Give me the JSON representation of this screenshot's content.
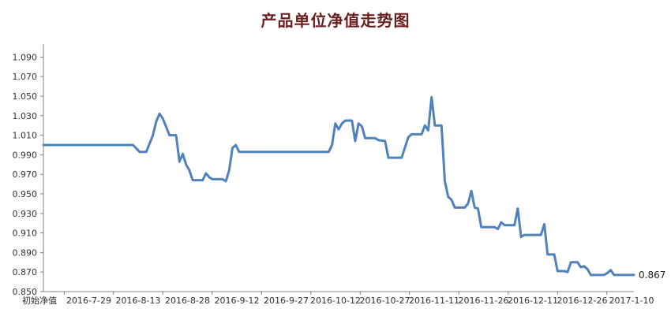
{
  "chart_data": {
    "type": "line",
    "title": "产品单位净值走势图",
    "xlabel": "",
    "ylabel": "",
    "ylim": [
      0.85,
      1.1
    ],
    "yticks": [
      0.85,
      0.87,
      0.89,
      0.91,
      0.93,
      0.95,
      0.97,
      0.99,
      1.01,
      1.03,
      1.05,
      1.07,
      1.09
    ],
    "ytick_labels": [
      "0.850",
      "0.870",
      "0.890",
      "0.910",
      "0.930",
      "0.950",
      "0.970",
      "0.990",
      "1.010",
      "1.030",
      "1.050",
      "1.070",
      "1.090"
    ],
    "x_tick_labels": [
      "初始净值",
      "2016-7-29",
      "2016-8-13",
      "2016-8-28",
      "2016-9-12",
      "2016-9-27",
      "2016-10-12",
      "2016-10-27",
      "2016-11-11",
      "2016-11-26",
      "2016-12-11",
      "2016-12-26",
      "2017-1-10"
    ],
    "x_range_days": [
      0,
      178
    ],
    "grid": false,
    "line_color": "#4f81bd",
    "last_value_label": "0.867",
    "series": [
      {
        "name": "",
        "points": [
          [
            0,
            1.0
          ],
          [
            27,
            1.0
          ],
          [
            29,
            0.993
          ],
          [
            31,
            0.993
          ],
          [
            33,
            1.01
          ],
          [
            34,
            1.024
          ],
          [
            35,
            1.032
          ],
          [
            36,
            1.027
          ],
          [
            38,
            1.01
          ],
          [
            40,
            1.01
          ],
          [
            41,
            0.983
          ],
          [
            42,
            0.991
          ],
          [
            43,
            0.98
          ],
          [
            44,
            0.974
          ],
          [
            45,
            0.964
          ],
          [
            48,
            0.964
          ],
          [
            49,
            0.971
          ],
          [
            50,
            0.967
          ],
          [
            51,
            0.965
          ],
          [
            54,
            0.965
          ],
          [
            55,
            0.963
          ],
          [
            56,
            0.974
          ],
          [
            57,
            0.997
          ],
          [
            58,
            1.0
          ],
          [
            59,
            0.993
          ],
          [
            86,
            0.993
          ],
          [
            87,
            1.0
          ],
          [
            88,
            1.022
          ],
          [
            89,
            1.016
          ],
          [
            90,
            1.022
          ],
          [
            91,
            1.025
          ],
          [
            93,
            1.025
          ],
          [
            94,
            1.004
          ],
          [
            95,
            1.022
          ],
          [
            96,
            1.019
          ],
          [
            97,
            1.007
          ],
          [
            100,
            1.007
          ],
          [
            101,
            1.005
          ],
          [
            103,
            1.004
          ],
          [
            104,
            0.987
          ],
          [
            108,
            0.987
          ],
          [
            110,
            1.008
          ],
          [
            111,
            1.011
          ],
          [
            114,
            1.011
          ],
          [
            115,
            1.02
          ],
          [
            116,
            1.015
          ],
          [
            117,
            1.049
          ],
          [
            118,
            1.02
          ],
          [
            120,
            1.02
          ],
          [
            121,
            0.963
          ],
          [
            122,
            0.947
          ],
          [
            123,
            0.944
          ],
          [
            124,
            0.936
          ],
          [
            127,
            0.936
          ],
          [
            128,
            0.94
          ],
          [
            129,
            0.953
          ],
          [
            130,
            0.936
          ],
          [
            131,
            0.935
          ],
          [
            132,
            0.916
          ],
          [
            136,
            0.916
          ],
          [
            137,
            0.914
          ],
          [
            138,
            0.921
          ],
          [
            139,
            0.918
          ],
          [
            142,
            0.918
          ],
          [
            143,
            0.935
          ],
          [
            144,
            0.906
          ],
          [
            145,
            0.908
          ],
          [
            150,
            0.908
          ],
          [
            151,
            0.919
          ],
          [
            152,
            0.888
          ],
          [
            154,
            0.888
          ],
          [
            155,
            0.871
          ],
          [
            157,
            0.871
          ],
          [
            158,
            0.87
          ],
          [
            159,
            0.88
          ],
          [
            161,
            0.88
          ],
          [
            162,
            0.875
          ],
          [
            163,
            0.876
          ],
          [
            164,
            0.873
          ],
          [
            165,
            0.867
          ],
          [
            169,
            0.867
          ],
          [
            170,
            0.869
          ],
          [
            171,
            0.872
          ],
          [
            172,
            0.867
          ],
          [
            178,
            0.867
          ]
        ]
      }
    ]
  }
}
